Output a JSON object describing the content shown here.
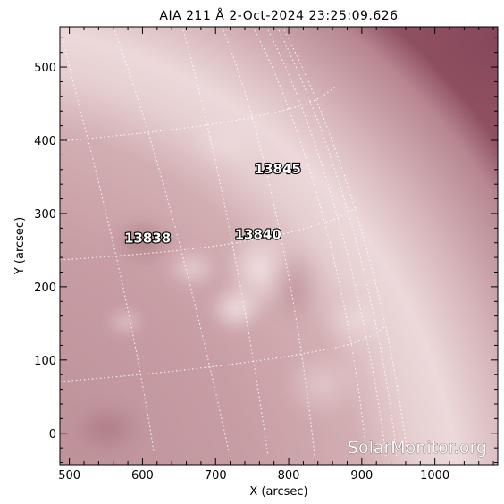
{
  "title": "AIA 211 Å  2-Oct-2024 23:25:09.626",
  "x_axis": {
    "label": "X (arcsec)",
    "ticks": [
      "500",
      "600",
      "700",
      "800",
      "900",
      "1000"
    ],
    "range": [
      487,
      1086
    ]
  },
  "y_axis": {
    "label": "Y (arcsec)",
    "ticks": [
      "0",
      "100",
      "200",
      "300",
      "400",
      "500"
    ],
    "range": [
      -43,
      555
    ]
  },
  "active_regions": [
    {
      "number": "13845",
      "x": 785,
      "y": 355
    },
    {
      "number": "13838",
      "x": 607,
      "y": 260
    },
    {
      "number": "13840",
      "x": 758,
      "y": 265
    }
  ],
  "watermark": "SolarMonitor.org",
  "colors": {
    "disk": "#c99ea4",
    "limb_glow": "#f2e2e3",
    "corona_dark": "#8a4a5a",
    "grid_line": "#ffffff"
  }
}
